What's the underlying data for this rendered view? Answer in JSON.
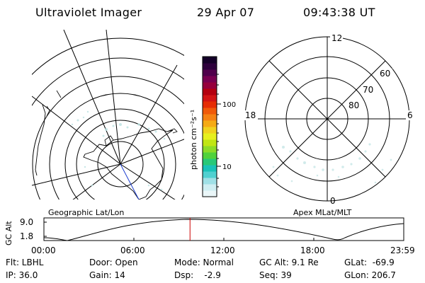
{
  "header": {
    "title": "Ultraviolet Imager",
    "date": "29 Apr 07",
    "time": "09:43:38 UT"
  },
  "left_panel": {
    "label": "Geographic Lat/Lon"
  },
  "right_panel": {
    "label": "Apex MLat/MLT",
    "mlt_labels": [
      "12",
      "18",
      "6",
      "0"
    ],
    "mlat_labels": [
      "60",
      "70",
      "80"
    ]
  },
  "colorbar": {
    "unit_label": "photon cm⁻²s⁻¹",
    "ticks": [
      "100",
      "10"
    ],
    "colors": [
      "#eaf6f8",
      "#cfeef2",
      "#9fe0e6",
      "#50d0d0",
      "#19c2b8",
      "#28c878",
      "#50d23c",
      "#8cdc28",
      "#c0e614",
      "#e6f01e",
      "#f0d21e",
      "#f5aa14",
      "#f58214",
      "#f05a0a",
      "#e62d05",
      "#d21414",
      "#b4000f",
      "#96003c",
      "#780050",
      "#50004b",
      "#2d003c",
      "#140028"
    ]
  },
  "timeline": {
    "ylabel": "GC Alt",
    "ytick_top": "9.0",
    "ytick_bottom": "1.8",
    "xticks": [
      "00:00",
      "06:00",
      "12:00",
      "18:00",
      "23:59"
    ],
    "current_time_fraction": 0.406,
    "marker_color": "#cc0000"
  },
  "status": {
    "filt": "Flt: LBHL",
    "ip": "IP: 36.0",
    "door": "Door: Open",
    "gain": "Gain: 14",
    "mode": "Mode: Normal",
    "dsp": "Dsp:    -2.9",
    "gc_alt": "GC Alt: 9.1 Re",
    "seq": "Seq: 39",
    "glat": "GLat:  -69.9",
    "glon": "GLon: 206.7"
  }
}
